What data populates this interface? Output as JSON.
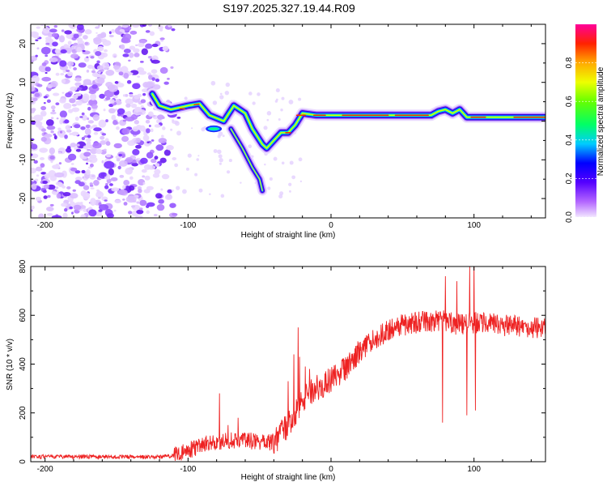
{
  "title": "S197.2025.327.19.44.R09",
  "chart_data": [
    {
      "type": "heatmap",
      "xlabel": "Height of straight line (km)",
      "ylabel": "Frequency (Hz)",
      "xlim": [
        -210,
        150
      ],
      "ylim": [
        -25,
        25
      ],
      "xticks": [
        -200,
        -100,
        0,
        100
      ],
      "yticks": [
        -20,
        -10,
        0,
        10,
        20
      ],
      "colorbar": {
        "label": "Normalized spectral amplitude",
        "range": [
          0,
          1
        ],
        "ticks": [
          "0.0",
          "0.2",
          "0.4",
          "0.6",
          "0.8"
        ]
      },
      "ridge": {
        "x": [
          -125,
          -120,
          -112,
          -100,
          -92,
          -85,
          -75,
          -68,
          -60,
          -55,
          -48,
          -45,
          -40,
          -35,
          -30,
          -25,
          -20,
          -10,
          0,
          10,
          20,
          30,
          40,
          50,
          60,
          70,
          75,
          80,
          85,
          90,
          95,
          100,
          110,
          120,
          130,
          140,
          150
        ],
        "y": [
          7,
          4,
          3,
          4,
          4.5,
          1.5,
          0,
          4,
          2,
          -2,
          -6,
          -7,
          -5,
          -3,
          -3,
          -1,
          2,
          1.5,
          1.5,
          1.5,
          1.5,
          1.5,
          1.5,
          1.5,
          1.5,
          1.5,
          2.5,
          3,
          2,
          3,
          1,
          1,
          1,
          1,
          1,
          1,
          1
        ]
      },
      "branch": {
        "x": [
          -70,
          -62,
          -55,
          -50,
          -48
        ],
        "y": [
          -2,
          -7,
          -12,
          -15,
          -18
        ]
      }
    },
    {
      "type": "line",
      "xlabel": "Height of straight line (km)",
      "ylabel": "SNR (10 * v/v)",
      "xlim": [
        -210,
        150
      ],
      "ylim": [
        0,
        800
      ],
      "xticks": [
        -200,
        -100,
        0,
        100
      ],
      "yticks": [
        0,
        200,
        400,
        600,
        800
      ],
      "series": [
        {
          "name": "SNR",
          "color": "#ee2222",
          "x": [
            -210,
            -180,
            -150,
            -120,
            -110,
            -100,
            -90,
            -80,
            -70,
            -60,
            -50,
            -40,
            -30,
            -25,
            -20,
            -10,
            0,
            10,
            20,
            30,
            40,
            50,
            60,
            70,
            80,
            90,
            100,
            110,
            120,
            130,
            140,
            150
          ],
          "values": [
            20,
            20,
            20,
            20,
            25,
            45,
            70,
            80,
            85,
            90,
            75,
            80,
            150,
            200,
            260,
            300,
            340,
            380,
            450,
            500,
            540,
            560,
            570,
            575,
            580,
            560,
            570,
            565,
            560,
            555,
            550,
            545
          ],
          "spikes": [
            [
              -78,
              280
            ],
            [
              -72,
              150
            ],
            [
              -65,
              180
            ],
            [
              -30,
              330
            ],
            [
              -26,
              440
            ],
            [
              -23,
              550
            ],
            [
              -22,
              430
            ],
            [
              -18,
              390
            ],
            [
              -15,
              380
            ],
            [
              78,
              160
            ],
            [
              80,
              760
            ],
            [
              88,
              740
            ],
            [
              95,
              190
            ],
            [
              97,
              800
            ],
            [
              100,
              820
            ],
            [
              101,
              210
            ]
          ]
        }
      ]
    }
  ]
}
